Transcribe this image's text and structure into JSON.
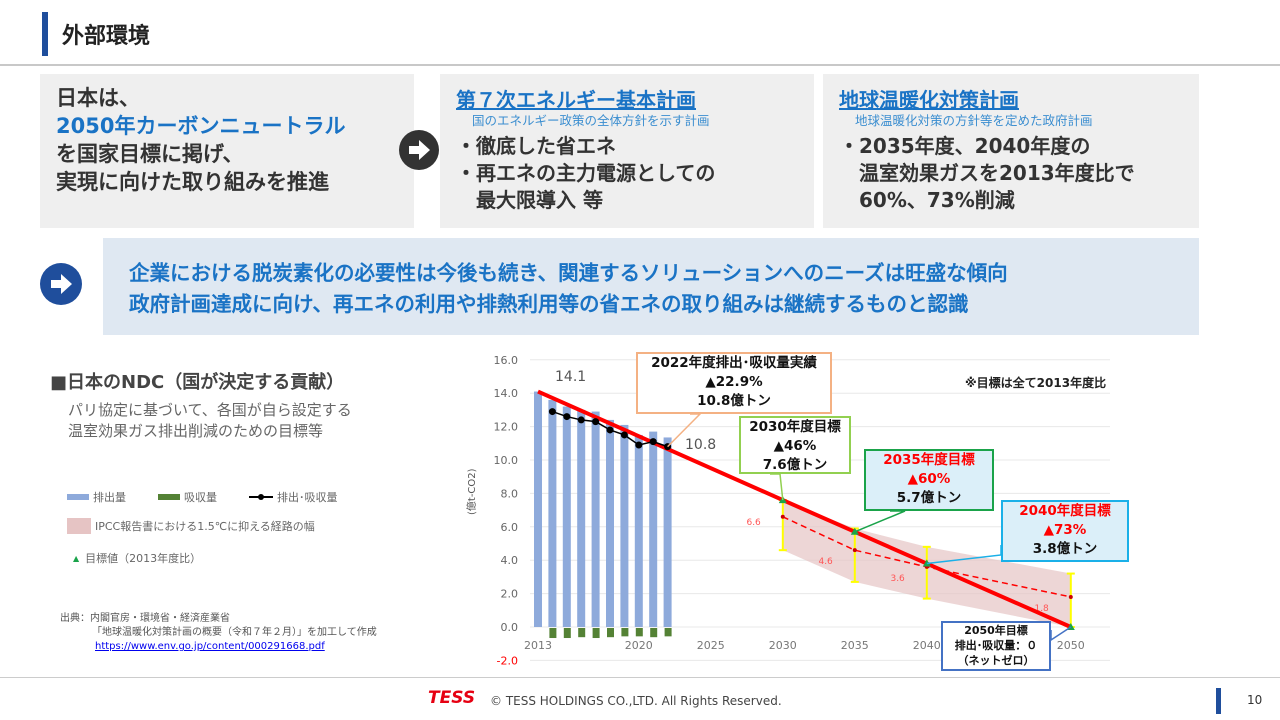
{
  "header": {
    "title": "外部環境"
  },
  "box1": {
    "lines": [
      "日本は、",
      "2050年カーボンニュートラル",
      "を国家目標に掲げ、",
      "実現に向けた取り組みを推進"
    ]
  },
  "box2": {
    "title": "第７次エネルギー基本計画",
    "subtitle": "国のエネルギー政策の全体方針を示す計画",
    "items": [
      "・徹底した省エネ",
      "・再エネの主力電源としての",
      "　最大限導入 等"
    ]
  },
  "box3": {
    "title": "地球温暖化対策計画",
    "subtitle": "地球温暖化対策の方針等を定めた政府計画",
    "items": [
      "・2035年度、2040年度の",
      "　温室効果ガスを2013年度比で",
      "　60%、73%削減"
    ]
  },
  "message": {
    "lines": [
      "企業における脱炭素化の必要性は今後も続き、関連するソリューションへのニーズは旺盛な傾向",
      "政府計画達成に向け、再エネの利用や排熱利用等の省エネの取り組みは継続するものと認識"
    ]
  },
  "ndc": {
    "title": "■日本のNDC（国が決定する貢献）",
    "desc": [
      "パリ協定に基づいて、各国が自ら設定する",
      "温室効果ガス排出削減のための目標等"
    ]
  },
  "legend": {
    "emission": "排出量",
    "absorption": "吸収量",
    "net": "排出･吸収量",
    "ipcc": "IPCC報告書における1.5℃に抑える経路の幅",
    "target": "目標値（2013年度比）"
  },
  "source": {
    "line1": "出典：内閣官房・環境省・経済産業省",
    "line2": "「地球温暖化対策計画の概要（令和７年２月）」を加工して作成",
    "url": "https://www.env.go.jp/content/000291668.pdf"
  },
  "footer": {
    "logo": "TESS",
    "copyright": "© TESS HOLDINGS CO.,LTD. All Rights Reserved.",
    "page": "10"
  },
  "colors": {
    "accent": "#1a73c5",
    "title_bar": "#1f4e9c",
    "target_line": "#ff0000",
    "emission": "#8eaadb",
    "absorption": "#548235",
    "band": "#e6c4c4",
    "error_bar": "#ffff00"
  },
  "chart_data": {
    "type": "bar+line",
    "ylabel": "(億t-CO2)",
    "ylim": [
      -2,
      16
    ],
    "yticks": [
      "16.0",
      "14.0",
      "12.0",
      "10.0",
      "8.0",
      "6.0",
      "4.0",
      "2.0",
      "0.0",
      "-2.0"
    ],
    "xticks": [
      "2013",
      "2020",
      "2025",
      "2030",
      "2035",
      "2040",
      "2050"
    ],
    "note": "※目標は全て2013年度比",
    "emission": {
      "x": [
        2013,
        2014,
        2015,
        2016,
        2017,
        2018,
        2019,
        2020,
        2021,
        2022
      ],
      "values": [
        14.1,
        13.6,
        13.2,
        13.0,
        12.9,
        12.4,
        12.1,
        11.5,
        11.7,
        11.35
      ]
    },
    "absorption": {
      "x": [
        2014,
        2015,
        2016,
        2017,
        2018,
        2019,
        2020,
        2021,
        2022
      ],
      "values": [
        -0.6,
        -0.6,
        -0.55,
        -0.6,
        -0.55,
        -0.5,
        -0.5,
        -0.55,
        -0.5
      ]
    },
    "net": {
      "x": [
        2014,
        2015,
        2016,
        2017,
        2018,
        2019,
        2020,
        2021,
        2022
      ],
      "values": [
        12.9,
        12.6,
        12.4,
        12.3,
        11.8,
        11.5,
        10.9,
        11.1,
        10.8
      ]
    },
    "target": {
      "x": [
        2013,
        2030,
        2035,
        2040,
        2050
      ],
      "values": [
        14.1,
        7.6,
        5.7,
        3.8,
        0
      ]
    },
    "ipcc_mid": {
      "x": [
        2030,
        2035,
        2040,
        2050
      ],
      "values": [
        6.6,
        4.6,
        3.6,
        1.8
      ]
    },
    "ipcc_low": [
      4.6,
      2.7,
      1.7,
      0
    ],
    "ipcc_high": [
      7.6,
      5.9,
      4.8,
      3.2
    ],
    "labels": {
      "start": "14.1",
      "latest": "10.8",
      "mid": [
        "6.6",
        "4.6",
        "3.6",
        "1.8"
      ]
    },
    "callouts": {
      "c2022": [
        "2022年度排出･吸収量実績",
        "▲22.9%",
        "10.8億トン"
      ],
      "c2030": [
        "2030年度目標",
        "▲46%",
        "7.6億トン"
      ],
      "c2035": [
        "2035年度目標",
        "▲60%",
        "5.7億トン"
      ],
      "c2040": [
        "2040年度目標",
        "▲73%",
        "3.8億トン"
      ],
      "c2050": [
        "2050年目標",
        "排出･吸収量：０",
        "（ネットゼロ）"
      ]
    }
  }
}
